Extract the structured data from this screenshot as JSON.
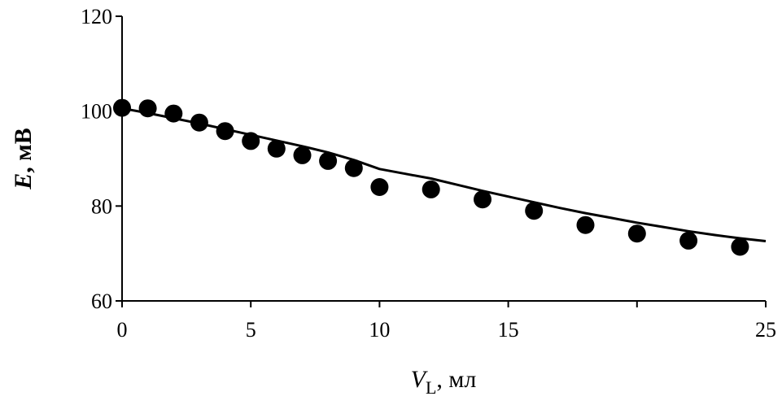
{
  "chart_data": {
    "type": "scatter",
    "xlabel": {
      "var": "V",
      "sub": "L",
      "unit": ", мл"
    },
    "ylabel": {
      "var": "E",
      "unit": ", мВ"
    },
    "xlim": [
      0,
      25
    ],
    "ylim": [
      60,
      120
    ],
    "xticks": [
      0,
      5,
      10,
      15,
      20,
      25
    ],
    "xtick_labels": [
      "0",
      "5",
      "10",
      "15",
      "",
      "25"
    ],
    "yticks": [
      60,
      80,
      100,
      120
    ],
    "ytick_labels": [
      "60",
      "80",
      "100",
      "120"
    ],
    "grid": false,
    "legend": "none",
    "series": [
      {
        "kind": "points",
        "color": "#000000",
        "x": [
          0,
          1,
          2,
          3,
          4,
          5,
          6,
          7,
          8,
          9,
          10,
          12,
          14,
          16,
          18,
          20,
          22,
          24
        ],
        "y": [
          100.7,
          100.6,
          99.5,
          97.6,
          95.8,
          93.7,
          92.1,
          90.7,
          89.5,
          88.0,
          84.0,
          83.5,
          81.4,
          79.0,
          76.0,
          74.2,
          72.7,
          71.4
        ]
      },
      {
        "kind": "line",
        "color": "#000000",
        "x": [
          0,
          1,
          2,
          3,
          4,
          5,
          6,
          7,
          8,
          9,
          10,
          11,
          12,
          13,
          14,
          15,
          16,
          17,
          18,
          19,
          20,
          21,
          22,
          23,
          24,
          25
        ],
        "y": [
          100.6,
          99.6,
          98.5,
          97.4,
          96.2,
          95.0,
          93.8,
          92.6,
          91.3,
          89.7,
          87.8,
          86.8,
          85.8,
          84.5,
          83.2,
          82.0,
          80.8,
          79.6,
          78.5,
          77.5,
          76.5,
          75.6,
          74.7,
          73.9,
          73.2,
          72.6
        ]
      }
    ]
  }
}
